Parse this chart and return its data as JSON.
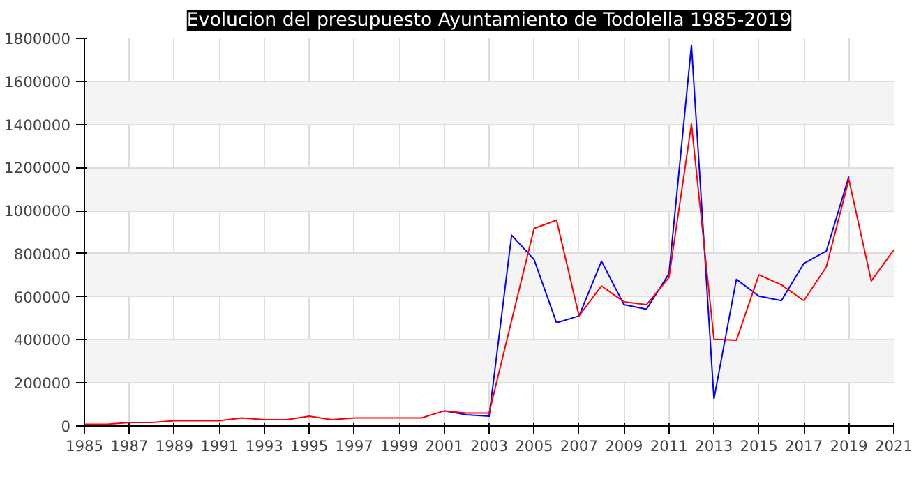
{
  "chart_data": {
    "type": "line",
    "title": "Evolucion del presupuesto Ayuntamiento de Todolella 1985-2019",
    "x": [
      1985,
      1986,
      1987,
      1988,
      1989,
      1990,
      1991,
      1992,
      1993,
      1994,
      1995,
      1996,
      1997,
      1998,
      1999,
      2000,
      2001,
      2002,
      2003,
      2004,
      2005,
      2006,
      2007,
      2008,
      2009,
      2010,
      2011,
      2012,
      2013,
      2014,
      2015,
      2016,
      2017,
      2018,
      2019,
      2020,
      2021
    ],
    "series": [
      {
        "color": "#0000ff",
        "values": [
          null,
          null,
          null,
          null,
          null,
          null,
          null,
          null,
          null,
          null,
          null,
          null,
          null,
          null,
          null,
          null,
          70000,
          52000,
          45000,
          886000,
          773000,
          479000,
          511000,
          765000,
          563000,
          542000,
          707000,
          1769000,
          126000,
          681000,
          603000,
          582000,
          755000,
          812000,
          1158000,
          null,
          null
        ]
      },
      {
        "color": "#ff0000",
        "values": [
          8000,
          8000,
          16000,
          16000,
          24000,
          24000,
          24000,
          37000,
          29000,
          29000,
          45000,
          29000,
          37000,
          37000,
          37000,
          37000,
          70000,
          60000,
          60000,
          490000,
          917000,
          956000,
          511000,
          650000,
          576000,
          563000,
          689000,
          1402000,
          403000,
          398000,
          702000,
          655000,
          582000,
          739000,
          1145000,
          673000,
          817000
        ]
      }
    ],
    "xlim": [
      1985,
      2021
    ],
    "xticks": [
      1985,
      1987,
      1989,
      1991,
      1993,
      1995,
      1997,
      1999,
      2001,
      2003,
      2005,
      2007,
      2009,
      2011,
      2013,
      2015,
      2017,
      2019,
      2021
    ],
    "ylim": [
      0,
      1800000
    ],
    "yticks": [
      0,
      200000,
      400000,
      600000,
      800000,
      1000000,
      1200000,
      1400000,
      1600000,
      1800000
    ],
    "grid": true,
    "marker": "none",
    "line_style": "solid"
  }
}
